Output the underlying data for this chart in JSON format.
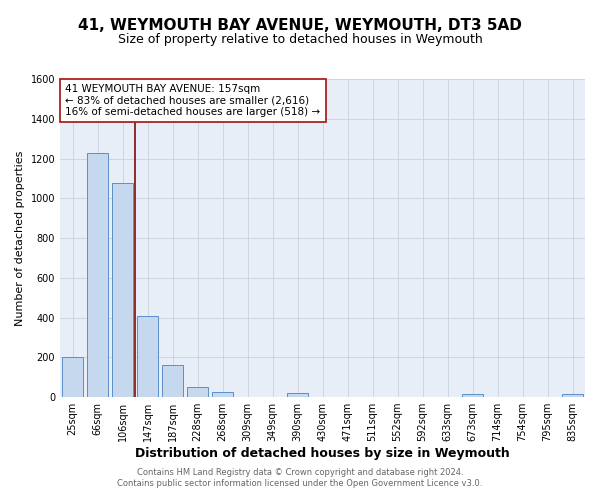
{
  "title": "41, WEYMOUTH BAY AVENUE, WEYMOUTH, DT3 5AD",
  "subtitle": "Size of property relative to detached houses in Weymouth",
  "xlabel": "Distribution of detached houses by size in Weymouth",
  "ylabel": "Number of detached properties",
  "bar_labels": [
    "25sqm",
    "66sqm",
    "106sqm",
    "147sqm",
    "187sqm",
    "228sqm",
    "268sqm",
    "309sqm",
    "349sqm",
    "390sqm",
    "430sqm",
    "471sqm",
    "511sqm",
    "552sqm",
    "592sqm",
    "633sqm",
    "673sqm",
    "714sqm",
    "754sqm",
    "795sqm",
    "835sqm"
  ],
  "bar_values": [
    200,
    1230,
    1075,
    410,
    160,
    52,
    25,
    0,
    0,
    22,
    0,
    0,
    0,
    0,
    0,
    0,
    18,
    0,
    0,
    0,
    17
  ],
  "bar_color": "#c5d8ee",
  "bar_edge_color": "#5b8fc9",
  "background_color": "#e8eef8",
  "vline_pos": 2.5,
  "vline_color": "#8b1a1a",
  "annotation_lines": [
    "41 WEYMOUTH BAY AVENUE: 157sqm",
    "← 83% of detached houses are smaller (2,616)",
    "16% of semi-detached houses are larger (518) →"
  ],
  "annotation_box_color": "white",
  "annotation_box_edge": "#aa2222",
  "ylim": [
    0,
    1600
  ],
  "yticks": [
    0,
    200,
    400,
    600,
    800,
    1000,
    1200,
    1400,
    1600
  ],
  "footer_line1": "Contains HM Land Registry data © Crown copyright and database right 2024.",
  "footer_line2": "Contains public sector information licensed under the Open Government Licence v3.0.",
  "title_fontsize": 11,
  "subtitle_fontsize": 9,
  "axis_label_fontsize": 9,
  "tick_fontsize": 7,
  "ylabel_fontsize": 8
}
